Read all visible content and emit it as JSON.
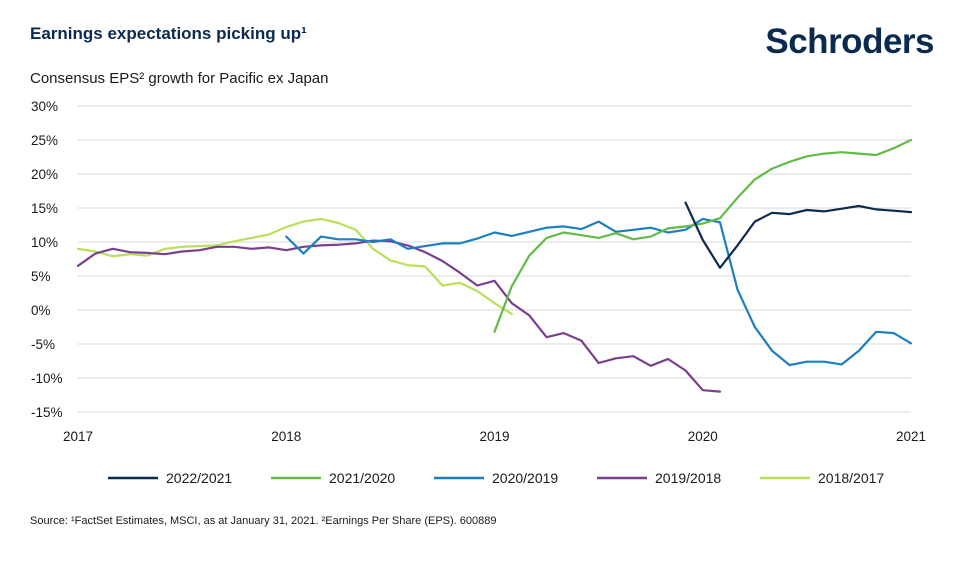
{
  "title": "Earnings expectations picking up¹",
  "logo": "Schroders",
  "source": "Source: ¹FactSet Estimates, MSCI, as at January 31, 2021. ²Earnings Per Share (EPS). 600889",
  "chart_data": {
    "type": "line",
    "title": "Earnings expectations picking up¹",
    "subtitle": "Consensus EPS² growth for Pacific ex Japan",
    "xlabel": "",
    "ylabel": "",
    "xlim": [
      2017.0,
      2021.0
    ],
    "ylim": [
      -15,
      30
    ],
    "x_ticks": [
      2017,
      2018,
      2019,
      2020,
      2021
    ],
    "x_tick_labels": [
      "2017",
      "2018",
      "2019",
      "2020",
      "2021"
    ],
    "y_ticks": [
      30,
      25,
      20,
      15,
      10,
      5,
      0,
      -5,
      -10,
      -15
    ],
    "y_tick_labels": [
      "30%",
      "25%",
      "20%",
      "15%",
      "10%",
      "5%",
      "0%",
      "-5%",
      "-10%",
      "-15%"
    ],
    "grid": "horizontal",
    "legend_position": "bottom",
    "series": [
      {
        "name": "2022/2021",
        "color": "#0b2a4f",
        "x": [
          2019.917,
          2020.0,
          2020.083,
          2020.167,
          2020.25,
          2020.333,
          2020.417,
          2020.5,
          2020.583,
          2020.667,
          2020.75,
          2020.833,
          2020.917,
          2021.0
        ],
        "y": [
          15.8,
          10.3,
          6.2,
          9.5,
          13.0,
          14.3,
          14.1,
          14.7,
          14.5,
          14.9,
          15.3,
          14.8,
          14.6,
          14.4
        ]
      },
      {
        "name": "2021/2020",
        "color": "#62bb46",
        "x": [
          2019.0,
          2019.083,
          2019.167,
          2019.25,
          2019.333,
          2019.417,
          2019.5,
          2019.583,
          2019.667,
          2019.75,
          2019.833,
          2019.917,
          2020.0,
          2020.083,
          2020.167,
          2020.25,
          2020.333,
          2020.417,
          2020.5,
          2020.583,
          2020.667,
          2020.75,
          2020.833,
          2020.917,
          2021.0
        ],
        "y": [
          -3.2,
          3.5,
          8.0,
          10.6,
          11.4,
          11.0,
          10.6,
          11.3,
          10.4,
          10.8,
          12.0,
          12.3,
          12.7,
          13.5,
          16.5,
          19.2,
          20.8,
          21.8,
          22.6,
          23.0,
          23.2,
          23.0,
          22.8,
          23.8,
          25.0
        ]
      },
      {
        "name": "2020/2019",
        "color": "#1b7fc1",
        "x": [
          2018.0,
          2018.083,
          2018.167,
          2018.25,
          2018.333,
          2018.417,
          2018.5,
          2018.583,
          2018.667,
          2018.75,
          2018.833,
          2018.917,
          2019.0,
          2019.083,
          2019.167,
          2019.25,
          2019.333,
          2019.417,
          2019.5,
          2019.583,
          2019.667,
          2019.75,
          2019.833,
          2019.917,
          2020.0,
          2020.083,
          2020.167,
          2020.25,
          2020.333,
          2020.417,
          2020.5,
          2020.583,
          2020.667,
          2020.75,
          2020.833,
          2020.917,
          2021.0
        ],
        "y": [
          10.8,
          8.3,
          10.8,
          10.4,
          10.4,
          10.0,
          10.4,
          9.0,
          9.4,
          9.8,
          9.8,
          10.5,
          11.4,
          10.9,
          11.5,
          12.1,
          12.3,
          11.9,
          13.0,
          11.5,
          11.8,
          12.1,
          11.4,
          11.8,
          13.4,
          12.9,
          3.0,
          -2.5,
          -6.0,
          -8.1,
          -7.6,
          -7.6,
          -8.0,
          -6.0,
          -3.2,
          -3.4,
          -4.9
        ]
      },
      {
        "name": "2019/2018",
        "color": "#7b3e8f",
        "x": [
          2017.0,
          2017.083,
          2017.167,
          2017.25,
          2017.333,
          2017.417,
          2017.5,
          2017.583,
          2017.667,
          2017.75,
          2017.833,
          2017.917,
          2018.0,
          2018.083,
          2018.167,
          2018.25,
          2018.333,
          2018.417,
          2018.5,
          2018.583,
          2018.667,
          2018.75,
          2018.833,
          2018.917,
          2019.0,
          2019.083,
          2019.167,
          2019.25,
          2019.333,
          2019.417,
          2019.5,
          2019.583,
          2019.667,
          2019.75,
          2019.833,
          2019.917,
          2020.0,
          2020.083
        ],
        "y": [
          6.5,
          8.3,
          9.0,
          8.5,
          8.4,
          8.2,
          8.6,
          8.8,
          9.3,
          9.3,
          9.0,
          9.2,
          8.8,
          9.3,
          9.5,
          9.6,
          9.8,
          10.2,
          10.1,
          9.5,
          8.5,
          7.2,
          5.5,
          3.6,
          4.3,
          1.0,
          -0.8,
          -4.0,
          -3.4,
          -4.5,
          -7.8,
          -7.1,
          -6.8,
          -8.2,
          -7.2,
          -8.9,
          -11.8,
          -12.0
        ]
      },
      {
        "name": "2018/2017",
        "color": "#b8e05a",
        "x": [
          2017.0,
          2017.083,
          2017.167,
          2017.25,
          2017.333,
          2017.417,
          2017.5,
          2017.583,
          2017.667,
          2017.75,
          2017.833,
          2017.917,
          2018.0,
          2018.083,
          2018.167,
          2018.25,
          2018.333,
          2018.417,
          2018.5,
          2018.583,
          2018.667,
          2018.75,
          2018.833,
          2018.917,
          2019.0,
          2019.083
        ],
        "y": [
          9.0,
          8.6,
          7.9,
          8.2,
          8.0,
          9.0,
          9.3,
          9.4,
          9.5,
          10.1,
          10.6,
          11.1,
          12.2,
          13.0,
          13.4,
          12.8,
          11.8,
          9.0,
          7.3,
          6.6,
          6.4,
          3.6,
          4.0,
          2.8,
          1.0,
          -0.6
        ]
      }
    ]
  }
}
